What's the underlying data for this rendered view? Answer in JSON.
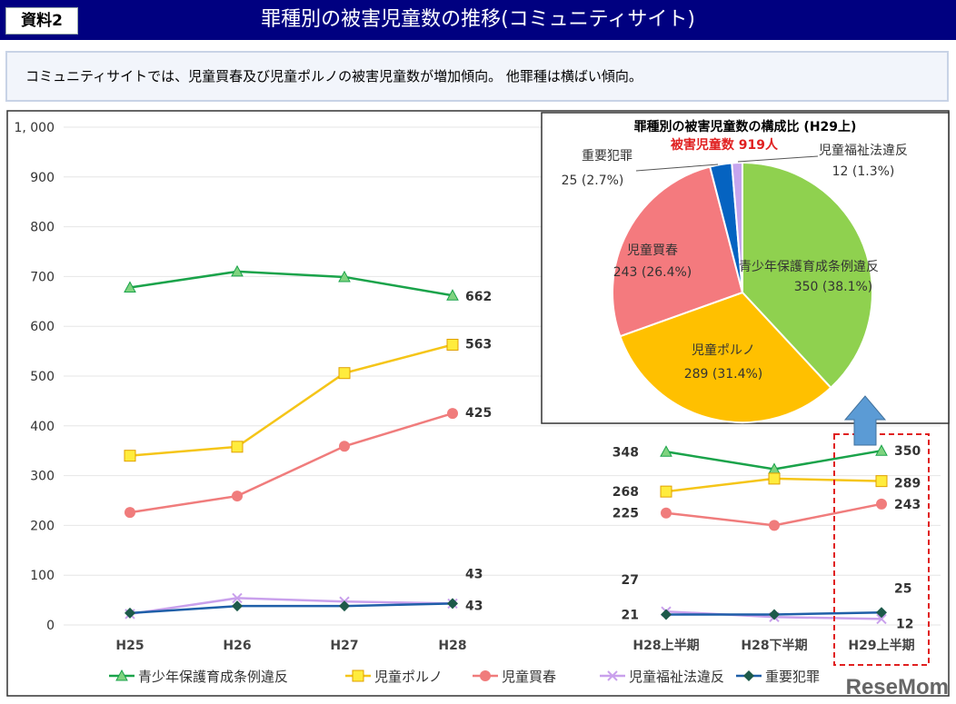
{
  "header": {
    "badge": "資料2",
    "title": "罪種別の被害児童数の推移(コミュニティサイト)"
  },
  "summary": "コミュニティサイトでは、児童買春及び児童ポルノの被害児童数が増加傾向。 他罪種は横ばい傾向。",
  "watermark": "ReseMom",
  "chart_data": [
    {
      "type": "line",
      "categories": [
        "H25",
        "H26",
        "H27",
        "H28",
        "H28上半期",
        "H28下半期",
        "H29上半期"
      ],
      "ylim": [
        0,
        1000
      ],
      "yticks": [
        "0",
        "100",
        "200",
        "300",
        "400",
        "500",
        "600",
        "700",
        "800",
        "900",
        "1, 000"
      ],
      "grid": true,
      "legend_position": "bottom",
      "series": [
        {
          "name": "青少年保護育成条例違反",
          "color": "#1aa34a",
          "marker": "triangle",
          "values": [
            678,
            710,
            699,
            662,
            348,
            313,
            350
          ],
          "labels": {
            "3": "662",
            "4": "348",
            "6": "350"
          }
        },
        {
          "name": "児童ポルノ",
          "color": "#f5c518",
          "marker": "square",
          "values": [
            340,
            358,
            506,
            563,
            268,
            294,
            289
          ],
          "labels": {
            "3": "563",
            "4": "268",
            "6": "289"
          }
        },
        {
          "name": "児童買春",
          "color": "#f07c7c",
          "marker": "circle",
          "values": [
            226,
            259,
            359,
            425,
            225,
            200,
            243
          ],
          "labels": {
            "3": "425",
            "4": "225",
            "6": "243"
          }
        },
        {
          "name": "児童福祉法違反",
          "color": "#c9a0ec",
          "marker": "x",
          "values": [
            22,
            54,
            47,
            43,
            27,
            16,
            12
          ],
          "labels": {
            "3": "43",
            "4": "27",
            "6": "12"
          }
        },
        {
          "name": "重要犯罪",
          "color": "#1f5fa8",
          "marker": "diamond",
          "values": [
            24,
            38,
            38,
            43,
            21,
            21,
            25
          ],
          "labels": {
            "3": "43",
            "4": "21",
            "6": "25"
          }
        }
      ]
    },
    {
      "type": "pie",
      "title": "罪種別の被害児童数の構成比 (H29上)",
      "subtitle": "被害児童数 919人",
      "slices": [
        {
          "label": "青少年保護育成条例違反",
          "value": 350,
          "text": "350 (38.1%)",
          "color": "#8fd14f"
        },
        {
          "label": "児童ポルノ",
          "value": 289,
          "text": "289 (31.4%)",
          "color": "#ffc000"
        },
        {
          "label": "児童買春",
          "value": 243,
          "text": "243 (26.4%)",
          "color": "#f47a7e"
        },
        {
          "label": "重要犯罪",
          "value": 25,
          "text": "25 (2.7%)",
          "color": "#0563c1"
        },
        {
          "label": "児童福祉法違反",
          "value": 12,
          "text": "12 (1.3%)",
          "color": "#c6a5ee"
        }
      ]
    }
  ]
}
